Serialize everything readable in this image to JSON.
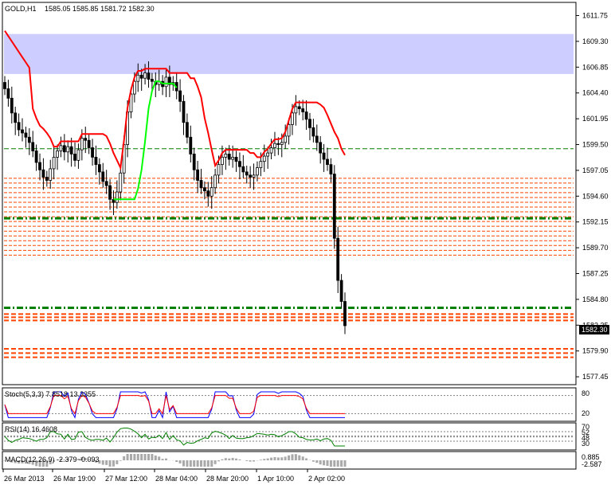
{
  "header": {
    "symbol": "GOLD,H1",
    "ohlc": "1585.05 1585.85 1581.72 1582.30"
  },
  "chart_data": {
    "type": "candlestick",
    "price_axis_ticks": [
      "1611.75",
      "1609.30",
      "1606.85",
      "1604.40",
      "1601.95",
      "1599.50",
      "1597.05",
      "1594.60",
      "1592.15",
      "1589.70",
      "1587.25",
      "1584.80",
      "1582.35",
      "1579.90",
      "1577.45"
    ],
    "ylim": [
      1576.7,
      1613.0
    ],
    "current_price": "1582.30",
    "time_axis_labels": [
      "26 Mar 2013",
      "26 Mar 19:00",
      "27 Mar 12:00",
      "28 Mar 04:00",
      "28 Mar 20:00",
      "1 Apr 10:00",
      "2 Apr 02:00"
    ],
    "candles_close": [
      1604.8,
      1603.9,
      1602.5,
      1601.6,
      1600.9,
      1600.6,
      1600.2,
      1599.7,
      1598.9,
      1597.8,
      1597.1,
      1596.4,
      1596.1,
      1597.2,
      1598.3,
      1598.9,
      1599.4,
      1598.8,
      1599.3,
      1598.6,
      1598.0,
      1599.0,
      1600.1,
      1599.9,
      1599.2,
      1598.3,
      1597.6,
      1596.9,
      1596.0,
      1595.6,
      1594.3,
      1594.0,
      1595.0,
      1596.8,
      1599.5,
      1602.6,
      1604.3,
      1605.5,
      1606.1,
      1605.8,
      1606.3,
      1605.7,
      1605.5,
      1605.2,
      1605.5,
      1605.0,
      1605.9,
      1605.2,
      1605.4,
      1604.6,
      1603.6,
      1601.6,
      1600.2,
      1598.6,
      1597.1,
      1596.1,
      1595.4,
      1595.1,
      1594.6,
      1595.4,
      1596.6,
      1597.6,
      1598.3,
      1598.6,
      1598.1,
      1598.3,
      1597.9,
      1597.4,
      1596.9,
      1596.6,
      1596.4,
      1596.6,
      1597.3,
      1597.9,
      1598.4,
      1598.7,
      1599.2,
      1599.6,
      1599.5,
      1599.7,
      1600.3,
      1601.4,
      1602.5,
      1603.1,
      1602.9,
      1602.6,
      1601.9,
      1601.1,
      1600.3,
      1599.7,
      1598.7,
      1598.1,
      1597.6,
      1596.7,
      1590.6,
      1586.6,
      1584.6,
      1582.3
    ],
    "levels": {
      "green_dashed": [
        1599.1,
        1592.5,
        1584.0
      ],
      "orange_dashed_bands": [
        [
          1589.0,
          1596.3
        ],
        [
          1582.8,
          1583.4
        ],
        [
          1579.3,
          1580.1
        ]
      ],
      "blue_zone": [
        1606.2,
        1610.0
      ]
    },
    "indicators": {
      "stochastic": {
        "label": "Stoch(5,3,3) 7.8518 13.3355",
        "levels": [
          "80",
          "20"
        ],
        "colors": [
          "#0000ff",
          "#ff0000"
        ]
      },
      "rsi": {
        "label": "RSI(14) 16.4608",
        "levels": [
          "70",
          "52",
          "48",
          "30"
        ],
        "color": "#008000"
      },
      "macd": {
        "label": "MACD(12,26,9) -2.379 -0.093",
        "levels": [
          "0.885",
          "-2.587"
        ]
      }
    },
    "colors": {
      "candle": "#000000",
      "resistance_line": "#ff0000",
      "support_line": "#00ff00",
      "zone": "#cdcdff",
      "green_level": "#008000",
      "orange_level": "#ff4500",
      "price_tag": "#000000"
    }
  }
}
